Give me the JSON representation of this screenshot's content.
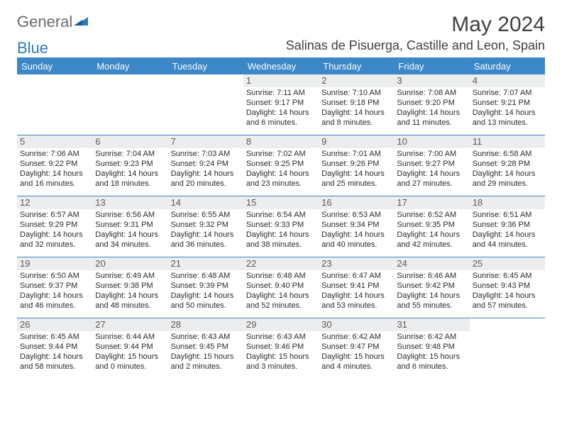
{
  "header": {
    "logo1": "General",
    "logo2": "Blue",
    "title": "May 2024",
    "subtitle": "Salinas de Pisuerga, Castille and Leon, Spain"
  },
  "colors": {
    "header_bg": "#3b87c8",
    "header_text": "#ffffff",
    "daynum_bg": "#ecedef",
    "border": "#3b87c8"
  },
  "weekdays": [
    "Sunday",
    "Monday",
    "Tuesday",
    "Wednesday",
    "Thursday",
    "Friday",
    "Saturday"
  ],
  "weeks": [
    [
      null,
      null,
      null,
      {
        "n": "1",
        "sr": "7:11 AM",
        "ss": "9:17 PM",
        "dl": "14 hours and 6 minutes."
      },
      {
        "n": "2",
        "sr": "7:10 AM",
        "ss": "9:18 PM",
        "dl": "14 hours and 8 minutes."
      },
      {
        "n": "3",
        "sr": "7:08 AM",
        "ss": "9:20 PM",
        "dl": "14 hours and 11 minutes."
      },
      {
        "n": "4",
        "sr": "7:07 AM",
        "ss": "9:21 PM",
        "dl": "14 hours and 13 minutes."
      }
    ],
    [
      {
        "n": "5",
        "sr": "7:06 AM",
        "ss": "9:22 PM",
        "dl": "14 hours and 16 minutes."
      },
      {
        "n": "6",
        "sr": "7:04 AM",
        "ss": "9:23 PM",
        "dl": "14 hours and 18 minutes."
      },
      {
        "n": "7",
        "sr": "7:03 AM",
        "ss": "9:24 PM",
        "dl": "14 hours and 20 minutes."
      },
      {
        "n": "8",
        "sr": "7:02 AM",
        "ss": "9:25 PM",
        "dl": "14 hours and 23 minutes."
      },
      {
        "n": "9",
        "sr": "7:01 AM",
        "ss": "9:26 PM",
        "dl": "14 hours and 25 minutes."
      },
      {
        "n": "10",
        "sr": "7:00 AM",
        "ss": "9:27 PM",
        "dl": "14 hours and 27 minutes."
      },
      {
        "n": "11",
        "sr": "6:58 AM",
        "ss": "9:28 PM",
        "dl": "14 hours and 29 minutes."
      }
    ],
    [
      {
        "n": "12",
        "sr": "6:57 AM",
        "ss": "9:29 PM",
        "dl": "14 hours and 32 minutes."
      },
      {
        "n": "13",
        "sr": "6:56 AM",
        "ss": "9:31 PM",
        "dl": "14 hours and 34 minutes."
      },
      {
        "n": "14",
        "sr": "6:55 AM",
        "ss": "9:32 PM",
        "dl": "14 hours and 36 minutes."
      },
      {
        "n": "15",
        "sr": "6:54 AM",
        "ss": "9:33 PM",
        "dl": "14 hours and 38 minutes."
      },
      {
        "n": "16",
        "sr": "6:53 AM",
        "ss": "9:34 PM",
        "dl": "14 hours and 40 minutes."
      },
      {
        "n": "17",
        "sr": "6:52 AM",
        "ss": "9:35 PM",
        "dl": "14 hours and 42 minutes."
      },
      {
        "n": "18",
        "sr": "6:51 AM",
        "ss": "9:36 PM",
        "dl": "14 hours and 44 minutes."
      }
    ],
    [
      {
        "n": "19",
        "sr": "6:50 AM",
        "ss": "9:37 PM",
        "dl": "14 hours and 46 minutes."
      },
      {
        "n": "20",
        "sr": "6:49 AM",
        "ss": "9:38 PM",
        "dl": "14 hours and 48 minutes."
      },
      {
        "n": "21",
        "sr": "6:48 AM",
        "ss": "9:39 PM",
        "dl": "14 hours and 50 minutes."
      },
      {
        "n": "22",
        "sr": "6:48 AM",
        "ss": "9:40 PM",
        "dl": "14 hours and 52 minutes."
      },
      {
        "n": "23",
        "sr": "6:47 AM",
        "ss": "9:41 PM",
        "dl": "14 hours and 53 minutes."
      },
      {
        "n": "24",
        "sr": "6:46 AM",
        "ss": "9:42 PM",
        "dl": "14 hours and 55 minutes."
      },
      {
        "n": "25",
        "sr": "6:45 AM",
        "ss": "9:43 PM",
        "dl": "14 hours and 57 minutes."
      }
    ],
    [
      {
        "n": "26",
        "sr": "6:45 AM",
        "ss": "9:44 PM",
        "dl": "14 hours and 58 minutes."
      },
      {
        "n": "27",
        "sr": "6:44 AM",
        "ss": "9:44 PM",
        "dl": "15 hours and 0 minutes."
      },
      {
        "n": "28",
        "sr": "6:43 AM",
        "ss": "9:45 PM",
        "dl": "15 hours and 2 minutes."
      },
      {
        "n": "29",
        "sr": "6:43 AM",
        "ss": "9:46 PM",
        "dl": "15 hours and 3 minutes."
      },
      {
        "n": "30",
        "sr": "6:42 AM",
        "ss": "9:47 PM",
        "dl": "15 hours and 4 minutes."
      },
      {
        "n": "31",
        "sr": "6:42 AM",
        "ss": "9:48 PM",
        "dl": "15 hours and 6 minutes."
      },
      null
    ]
  ],
  "labels": {
    "sunrise": "Sunrise:",
    "sunset": "Sunset:",
    "daylight": "Daylight:"
  }
}
